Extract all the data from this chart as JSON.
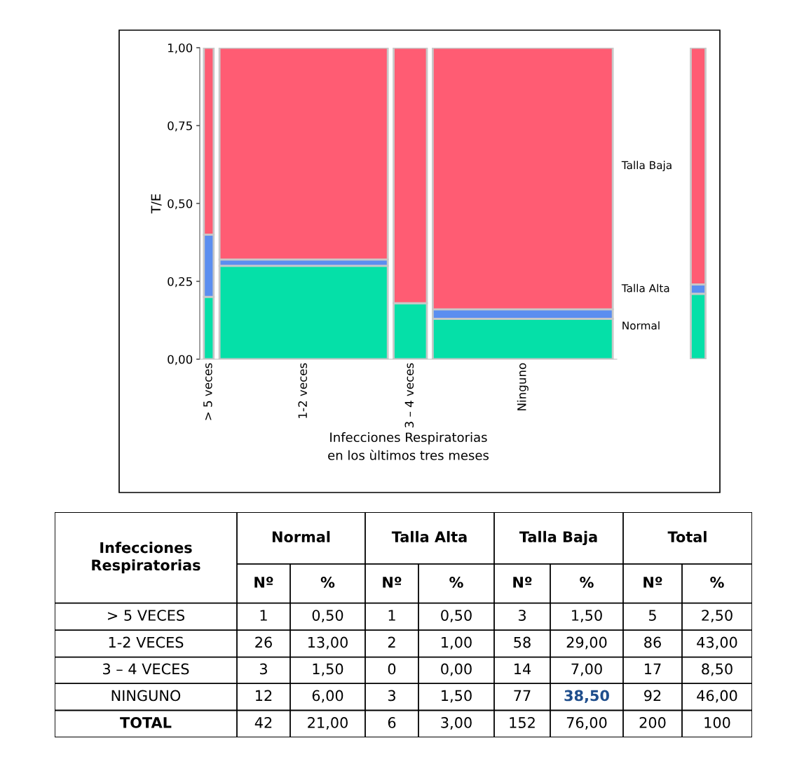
{
  "chart_data": [
    {
      "type": "bar",
      "stacked": true,
      "ylabel": "T/E",
      "xlabel": "Infecciones Respiratorias\nen los ùltimos tres meses",
      "categories": [
        "> 5 veces",
        "1-2 veces",
        "3 – 4 veces",
        "Ninguno"
      ],
      "series": [
        {
          "color": "#05e0a8",
          "values": [
            0.2,
            0.3,
            0.18,
            0.13
          ]
        },
        {
          "color": "#5b8ef0",
          "values": [
            0.2,
            0.02,
            0.0,
            0.03
          ]
        },
        {
          "color": "#ff5c73",
          "values": [
            0.6,
            0.68,
            0.82,
            0.84
          ]
        }
      ],
      "ylim": [
        0,
        1
      ],
      "yticks": [
        {
          "value": 0,
          "label": "0,00"
        },
        {
          "value": 0.25,
          "label": "0,25"
        },
        {
          "value": 0.5,
          "label": "0,50"
        },
        {
          "value": 0.75,
          "label": "0,75"
        },
        {
          "value": 1,
          "label": "1,00"
        }
      ],
      "grid": false
    },
    {
      "type": "bar",
      "stacked": true,
      "categories": [
        null
      ],
      "series": [
        {
          "name": "Normal",
          "color": "#05e0a8",
          "values": [
            0.21
          ]
        },
        {
          "name": "Talla Alta",
          "color": "#5b8ef0",
          "values": [
            0.03
          ]
        },
        {
          "name": "Talla Baja",
          "color": "#ff5c73",
          "values": [
            0.76
          ]
        }
      ],
      "ylim": [
        0,
        1
      ],
      "tick_labels": false,
      "grid": false,
      "legend": "left"
    },
    {
      "type": "other",
      "annotations": [
        "Infecciones\nRespiratorias",
        "Normal",
        "Talla Alta",
        "Talla Baja",
        "Total"
      ],
      "categories": [
        "> 5 VECES",
        "1-2 VECES",
        "3 – 4 VECES",
        "NINGUNO",
        "TOTAL"
      ],
      "series": [
        {
          "name": "Nº",
          "color": "#000000",
          "values": [
            1,
            26,
            3,
            12,
            42
          ],
          "value_labels": [
            "1",
            "26",
            "3",
            "12",
            "42"
          ]
        },
        {
          "name": "%",
          "color": "#000000",
          "values": [
            0.5,
            13,
            1.5,
            6,
            21
          ],
          "value_labels": [
            "0,50",
            "13,00",
            "1,50",
            "6,00",
            "21,00"
          ]
        },
        {
          "name": "Nº",
          "color": "#000000",
          "values": [
            1,
            2,
            0,
            3,
            6
          ],
          "value_labels": [
            "1",
            "2",
            "0",
            "3",
            "6"
          ]
        },
        {
          "name": "%",
          "color": "#000000",
          "values": [
            0.5,
            1,
            0,
            1.5,
            3
          ],
          "value_labels": [
            "0,50",
            "1,00",
            "0,00",
            "1,50",
            "3,00"
          ]
        },
        {
          "name": "Nº",
          "color": "#000000",
          "values": [
            3,
            58,
            14,
            77,
            152
          ],
          "value_labels": [
            "3",
            "58",
            "14",
            "77",
            "152"
          ]
        },
        {
          "name": "%",
          "color": "#000000",
          "colors": [
            "#000000",
            "#000000",
            "#000000",
            "#1f4e8c",
            "#000000"
          ],
          "values": [
            1.5,
            29,
            7,
            38.5,
            76
          ],
          "value_labels": [
            "1,50",
            "29,00",
            "7,00",
            "38,50",
            "76,00"
          ]
        },
        {
          "name": "Nº",
          "color": "#000000",
          "values": [
            5,
            86,
            17,
            92,
            200
          ],
          "value_labels": [
            "5",
            "86",
            "17",
            "92",
            "200"
          ]
        },
        {
          "name": "%",
          "color": "#000000",
          "values": [
            2.5,
            43,
            8.5,
            46,
            100
          ],
          "value_labels": [
            "2,50",
            "43,00",
            "8,50",
            "46,00",
            "100"
          ]
        }
      ]
    }
  ]
}
